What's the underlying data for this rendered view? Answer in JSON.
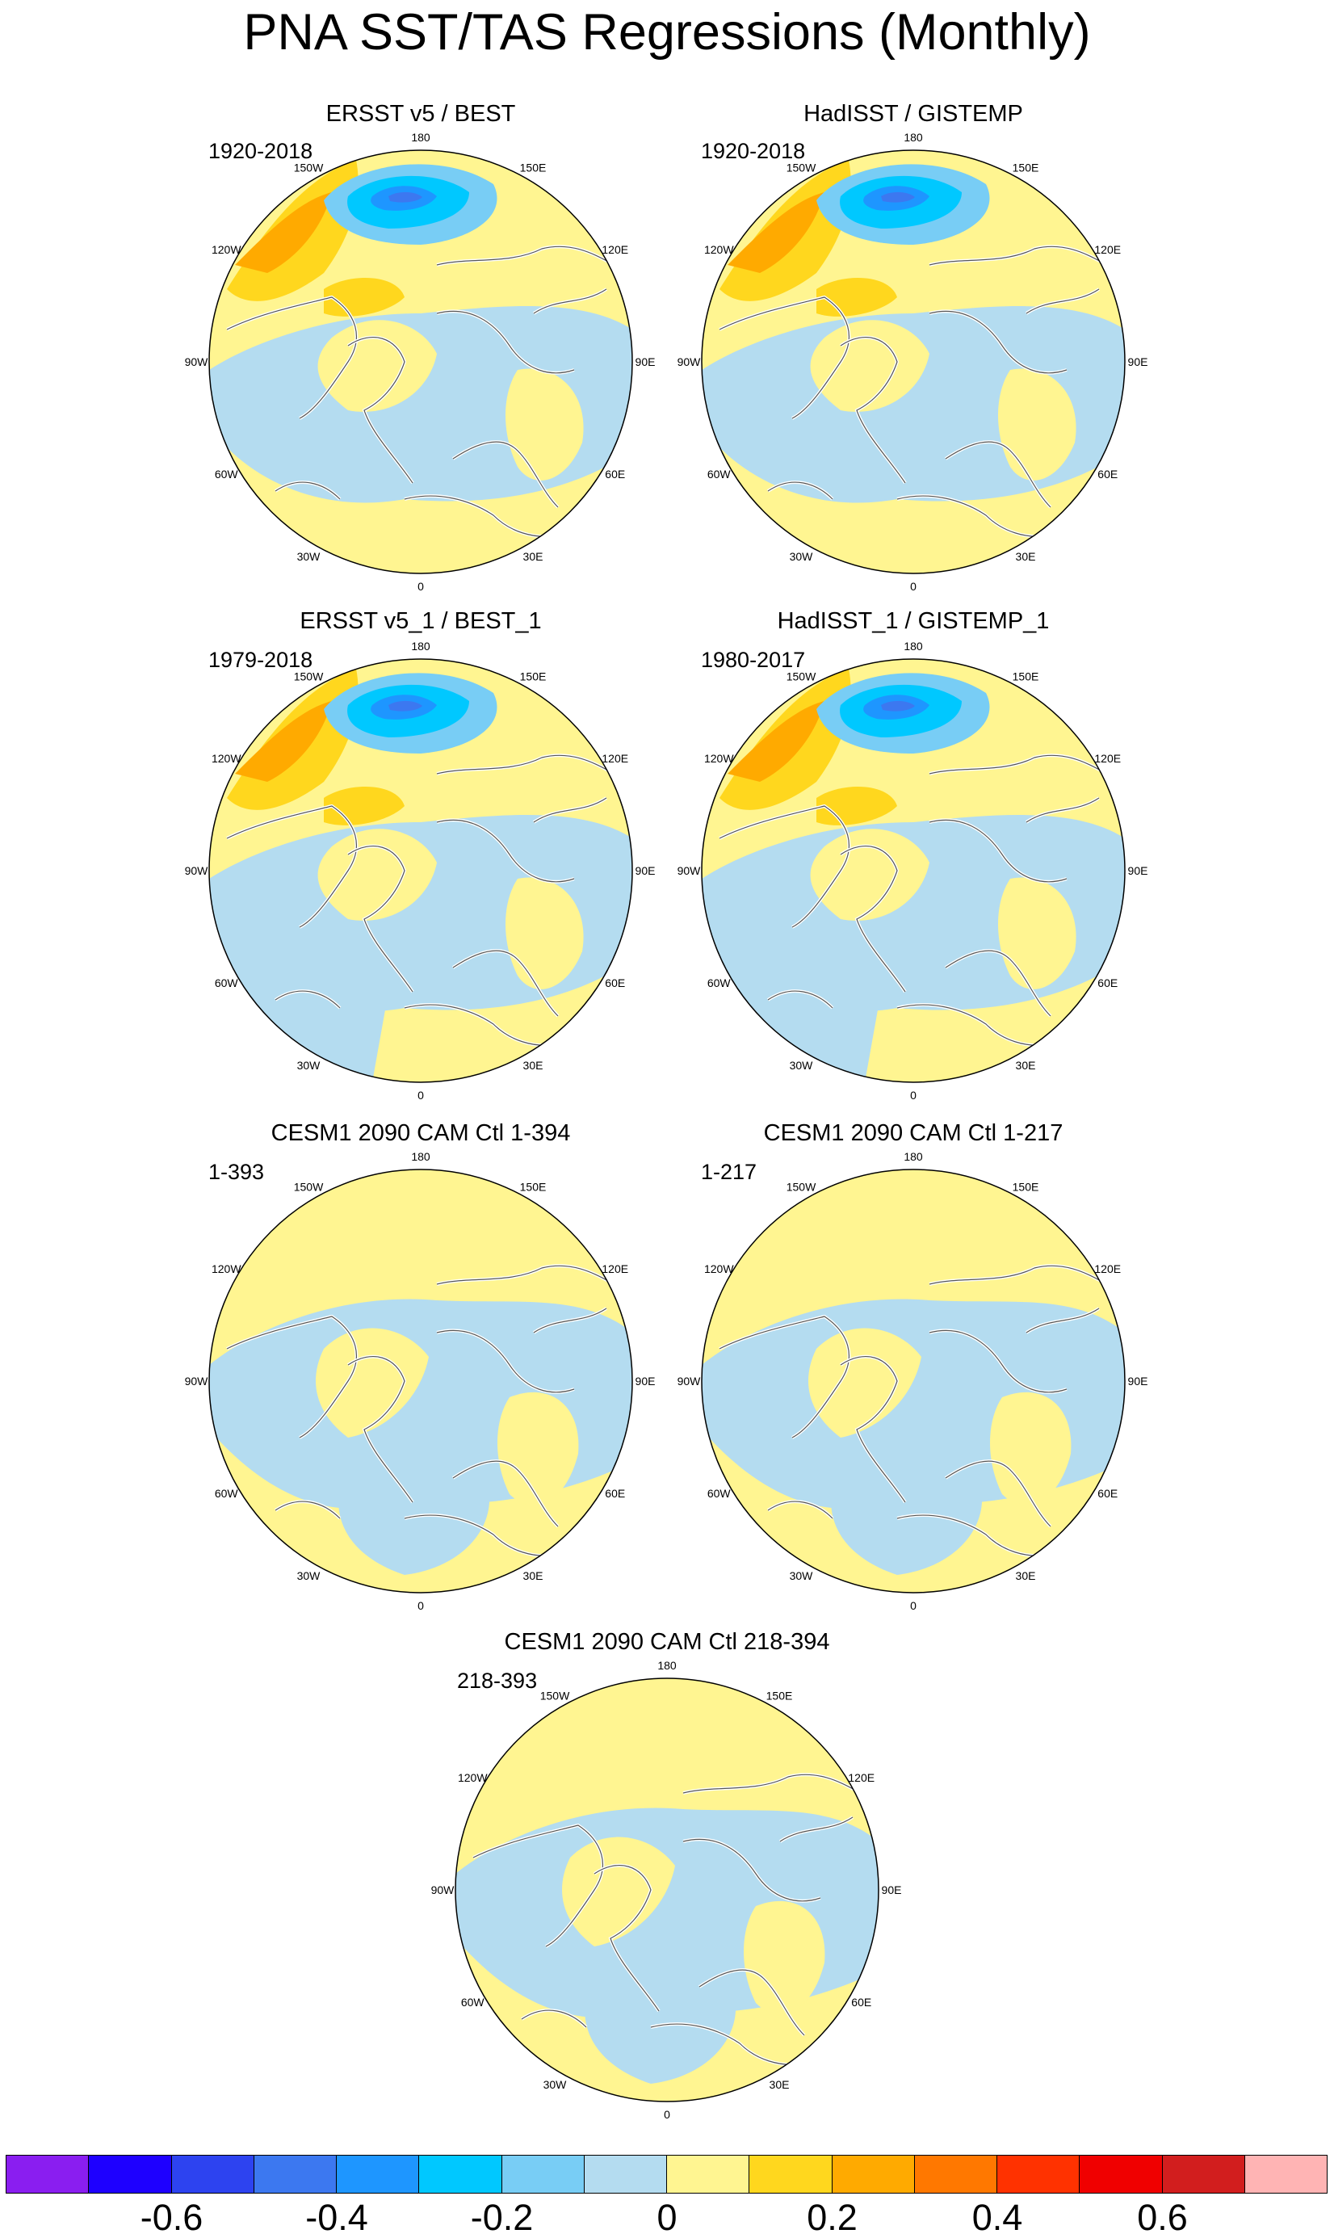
{
  "title": "PNA SST/TAS Regressions (Monthly)",
  "panels": [
    {
      "title": "ERSST v5 / BEST",
      "period": "1920-2018",
      "pattern": "obs"
    },
    {
      "title": "HadISST / GISTEMP",
      "period": "1920-2018",
      "pattern": "obs"
    },
    {
      "title": "ERSST v5_1 / BEST_1",
      "period": "1979-2018",
      "pattern": "obs2"
    },
    {
      "title": "HadISST_1 / GISTEMP_1",
      "period": "1980-2017",
      "pattern": "obs2"
    },
    {
      "title": "CESM1 2090 CAM Ctl 1-394",
      "period": "1-393",
      "pattern": "model"
    },
    {
      "title": "CESM1 2090 CAM Ctl 1-217",
      "period": "1-217",
      "pattern": "model"
    },
    {
      "title": "CESM1 2090 CAM Ctl 218-394",
      "period": "218-393",
      "pattern": "model"
    }
  ],
  "longitude_labels": [
    "180",
    "150E",
    "120E",
    "90E",
    "60E",
    "30E",
    "0",
    "30W",
    "60W",
    "90W",
    "120W",
    "150W"
  ],
  "colorbar": {
    "colors": [
      "#8a1ef0",
      "#1e00ff",
      "#2d43f0",
      "#3c78f0",
      "#1e96ff",
      "#00c8ff",
      "#78cdf5",
      "#b4dcf0",
      "#fff591",
      "#ffd71e",
      "#ffaa00",
      "#ff7800",
      "#ff3200",
      "#f00000",
      "#d21e1e",
      "#ffb4b4"
    ],
    "labels": [
      {
        "text": "-0.6",
        "boundary": 2
      },
      {
        "text": "-0.4",
        "boundary": 4
      },
      {
        "text": "-0.2",
        "boundary": 6
      },
      {
        "text": "0",
        "boundary": 8
      },
      {
        "text": "0.2",
        "boundary": 10
      },
      {
        "text": "0.4",
        "boundary": 12
      },
      {
        "text": "0.6",
        "boundary": 14
      }
    ]
  }
}
